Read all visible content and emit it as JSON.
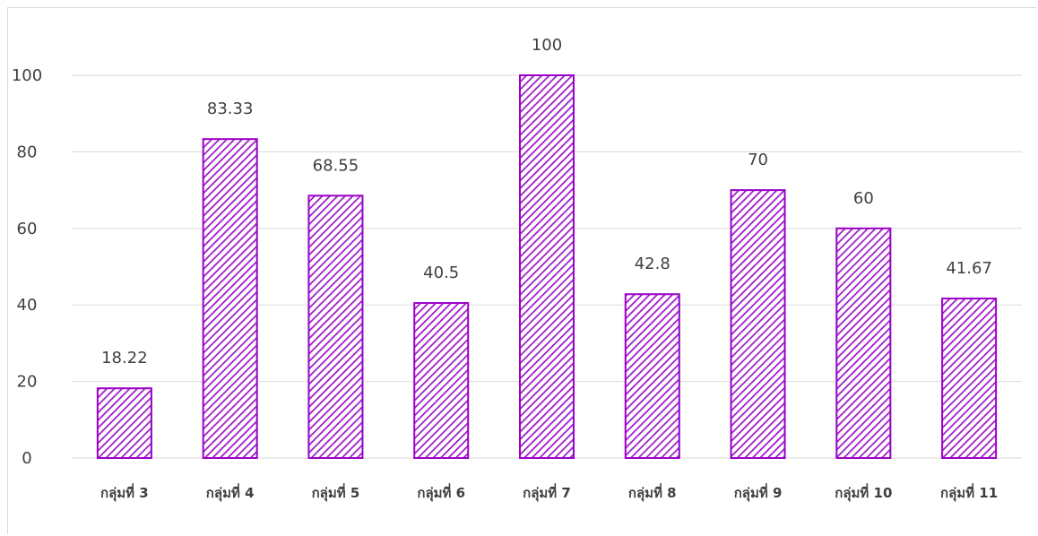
{
  "chart_data": {
    "type": "bar",
    "title": "",
    "xlabel": "",
    "ylabel": "",
    "categories": [
      "กลุ่มที่ 3",
      "กลุ่มที่ 4",
      "กลุ่มที่ 5",
      "กลุ่มที่ 6",
      "กลุ่มที่ 7",
      "กลุ่มที่ 8",
      "กลุ่มที่ 9",
      "กลุ่มที่ 10",
      "กลุ่มที่ 11"
    ],
    "values": [
      18.22,
      83.33,
      68.55,
      40.5,
      100,
      42.8,
      70,
      60,
      41.67
    ],
    "data_labels": [
      "18.22",
      "83.33",
      "68.55",
      "40.5",
      "100",
      "42.8",
      "70",
      "60",
      "41.67"
    ],
    "ylim": [
      0,
      100
    ],
    "yticks": [
      0,
      20,
      40,
      60,
      80,
      100
    ],
    "ytick_labels": [
      "0",
      "20",
      "40",
      "60",
      "80",
      "100"
    ],
    "grid": true,
    "legend": "none",
    "colors": {
      "bar_stroke": "#9b00c8",
      "bar_hatch": "#a020c8",
      "bar_bg": "#ffffff",
      "grid": "#d9d9d9",
      "text": "#404040"
    }
  }
}
